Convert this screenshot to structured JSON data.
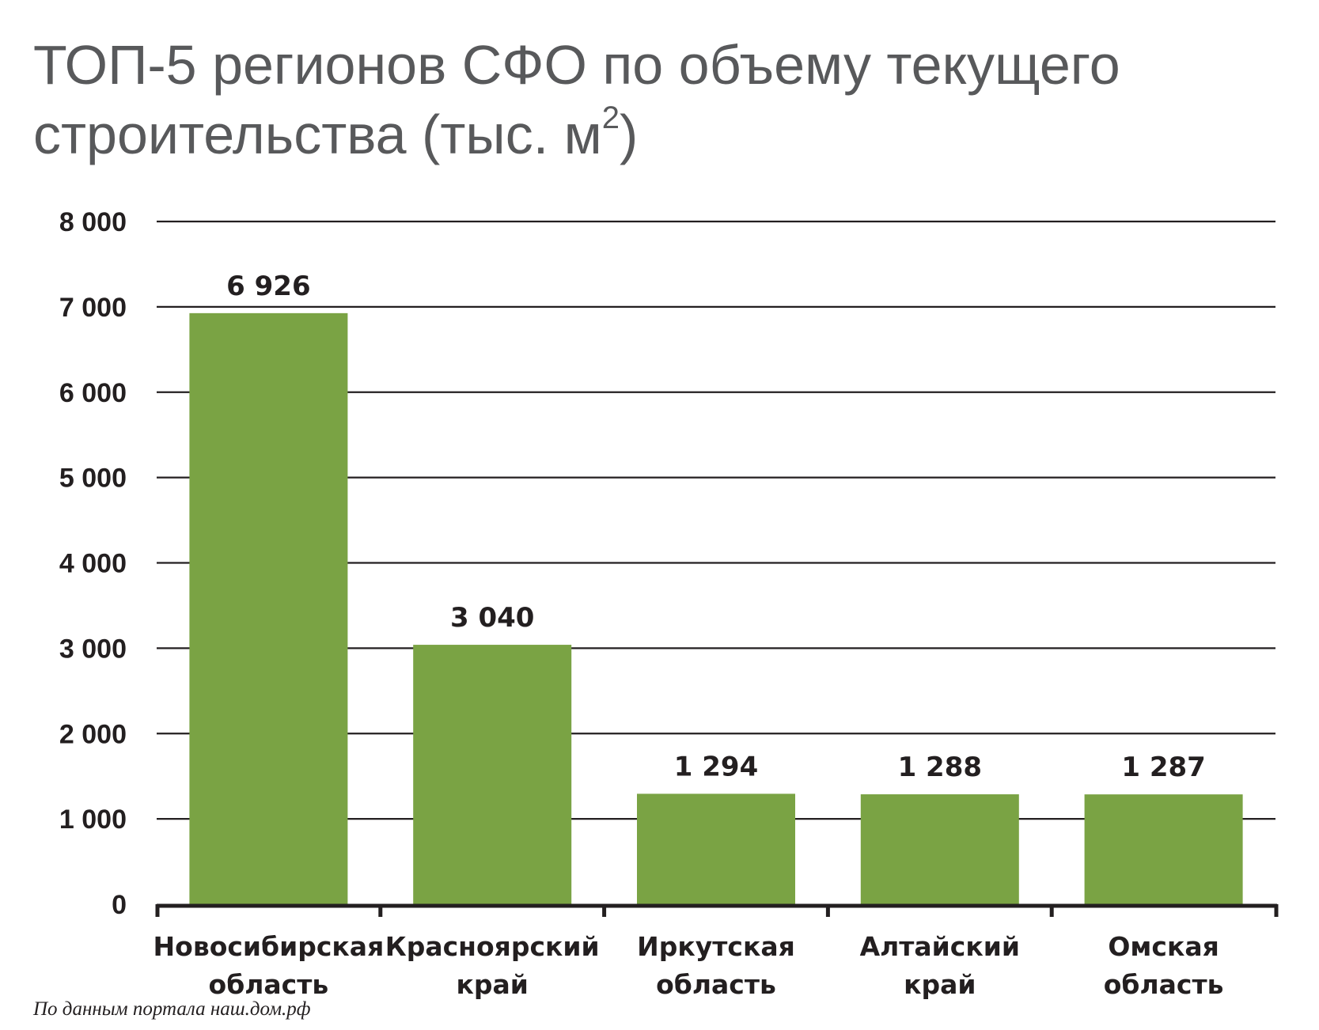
{
  "title_main": "ТОП-5 регионов СФО по объему текущего строительства (тыс. м",
  "title_sup": "2",
  "title_end": ")",
  "source_note": "По данным портала наш.дом.рф",
  "colors": {
    "bar": "#7aa344",
    "text": "#231f20",
    "title": "#58595b",
    "grid": "#231f20"
  },
  "chart_data": {
    "type": "bar",
    "title": "ТОП-5 регионов СФО по объему текущего строительства (тыс. м²)",
    "categories": [
      [
        "Новосибирская",
        "область"
      ],
      [
        "Красноярский",
        "край"
      ],
      [
        "Иркутская",
        "область"
      ],
      [
        "Алтайский",
        "край"
      ],
      [
        "Омская",
        "область"
      ]
    ],
    "values": [
      6926,
      3040,
      1294,
      1288,
      1287
    ],
    "value_labels": [
      "6 926",
      "3 040",
      "1 294",
      "1 288",
      "1 287"
    ],
    "ylim": [
      0,
      8000
    ],
    "y_ticks": [
      0,
      1000,
      2000,
      3000,
      4000,
      5000,
      6000,
      7000,
      8000
    ],
    "y_tick_labels": [
      "0",
      "1 000",
      "2 000",
      "3 000",
      "4 000",
      "5 000",
      "6 000",
      "7 000",
      "8 000"
    ],
    "grid": true,
    "legend": "none"
  }
}
